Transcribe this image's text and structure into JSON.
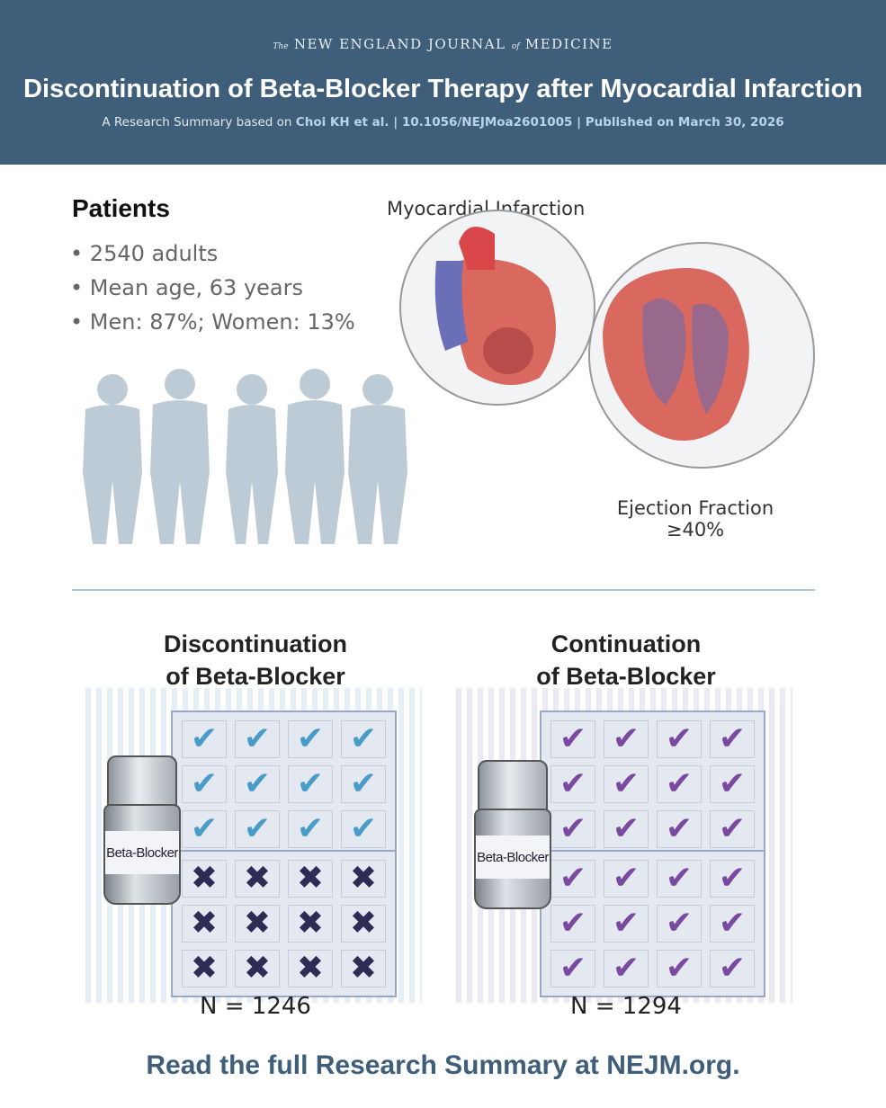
{
  "header": {
    "journal_prefix": "The",
    "journal_a": "NEW ENGLAND JOURNAL",
    "journal_of": "of",
    "journal_b": "MEDICINE",
    "title": "Discontinuation of Beta-Blocker Therapy after Myocardial Infarction",
    "sub_prefix": "A Research Summary based on",
    "sub_details": "Choi KH et al. | 10.1056/NEJMoa2601005 | Published on March 30, 2026"
  },
  "patients": {
    "heading": "Patients",
    "bullets": [
      "2540 adults",
      "Mean age, 63 years",
      "Men: 87%; Women: 13%"
    ]
  },
  "heart": {
    "label_top": "Myocardial Infarction",
    "label_bottom": "Ejection Fraction",
    "ef_value": "≥40%"
  },
  "groups": [
    {
      "title_1": "Discontinuation",
      "title_2": "of Beta-Blocker",
      "bottle_label": "Beta-Blocker",
      "n": "N = 1246",
      "check_color": "#4a9cc8",
      "rows": [
        "check",
        "check",
        "check",
        "x",
        "x",
        "x"
      ]
    },
    {
      "title_1": "Continuation",
      "title_2": "of Beta-Blocker",
      "bottle_label": "Beta-Blocker",
      "n": "N = 1294",
      "check_color": "#7a4aa0",
      "rows": [
        "check",
        "check",
        "check",
        "check",
        "check",
        "check"
      ]
    }
  ],
  "colors": {
    "header": "#3f5e7a",
    "x_color": "#2b2d55"
  },
  "footer": "Read the full Research Summary at NEJM.org."
}
